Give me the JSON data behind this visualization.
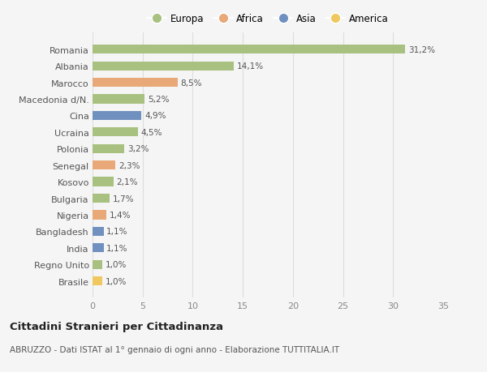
{
  "categories": [
    "Romania",
    "Albania",
    "Marocco",
    "Macedonia d/N.",
    "Cina",
    "Ucraina",
    "Polonia",
    "Senegal",
    "Kosovo",
    "Bulgaria",
    "Nigeria",
    "Bangladesh",
    "India",
    "Regno Unito",
    "Brasile"
  ],
  "values": [
    31.2,
    14.1,
    8.5,
    5.2,
    4.9,
    4.5,
    3.2,
    2.3,
    2.1,
    1.7,
    1.4,
    1.1,
    1.1,
    1.0,
    1.0
  ],
  "labels": [
    "31,2%",
    "14,1%",
    "8,5%",
    "5,2%",
    "4,9%",
    "4,5%",
    "3,2%",
    "2,3%",
    "2,1%",
    "1,7%",
    "1,4%",
    "1,1%",
    "1,1%",
    "1,0%",
    "1,0%"
  ],
  "continent": [
    "Europa",
    "Europa",
    "Africa",
    "Europa",
    "Asia",
    "Europa",
    "Europa",
    "Africa",
    "Europa",
    "Europa",
    "Africa",
    "Asia",
    "Asia",
    "Europa",
    "America"
  ],
  "colors": {
    "Europa": "#a8c080",
    "Africa": "#e8a878",
    "Asia": "#7090c0",
    "America": "#f0c860"
  },
  "xlim": [
    0,
    35
  ],
  "xticks": [
    0,
    5,
    10,
    15,
    20,
    25,
    30,
    35
  ],
  "title": "Cittadini Stranieri per Cittadinanza",
  "subtitle": "ABRUZZO - Dati ISTAT al 1° gennaio di ogni anno - Elaborazione TUTTITALIA.IT",
  "background_color": "#f5f5f5",
  "grid_color": "#dddddd",
  "bar_height": 0.55,
  "legend_order": [
    "Europa",
    "Africa",
    "Asia",
    "America"
  ]
}
